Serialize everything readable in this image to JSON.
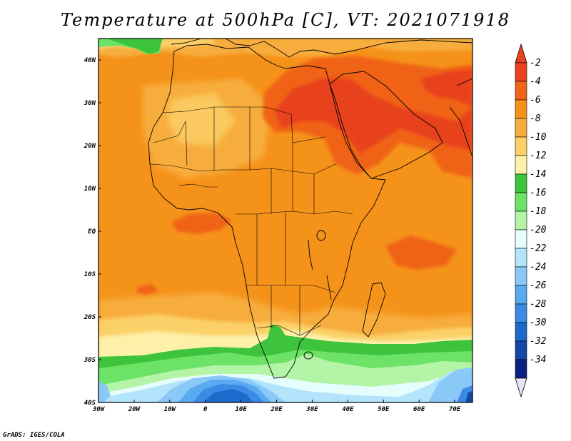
{
  "title": "Temperature at 500hPa [C], VT: 2021071918",
  "credit": "GrADS: IGES/COLA",
  "chart_data": {
    "type": "heatmap",
    "variable": "Temperature at 500hPa",
    "units": "C",
    "valid_time": "2021071918",
    "lon_range": [
      -30,
      75
    ],
    "lat_range": [
      -40,
      45
    ],
    "x_ticks": [
      "30W",
      "20W",
      "10W",
      "0",
      "10E",
      "20E",
      "30E",
      "40E",
      "50E",
      "60E",
      "70E"
    ],
    "y_ticks": [
      "40N",
      "30N",
      "20N",
      "10N",
      "EQ",
      "10S",
      "20S",
      "30S",
      "40S"
    ],
    "colorbar": {
      "levels": [
        -2,
        -4,
        -6,
        -8,
        -10,
        -12,
        -14,
        -16,
        -18,
        -20,
        -22,
        -24,
        -26,
        -28,
        -30,
        -32,
        -34
      ],
      "labels": [
        "-2",
        "-4",
        "-6",
        "-8",
        "-10",
        "-12",
        "-14",
        "-16",
        "-18",
        "-20",
        "-22",
        "-24",
        "-26",
        "-28",
        "-30",
        "-32",
        "-34"
      ],
      "colors": [
        "#e8421e",
        "#f06418",
        "#f5921a",
        "#f7ad3c",
        "#fbd067",
        "#fdf0a8",
        "#3ec43c",
        "#6ce266",
        "#b4f4a6",
        "#e6fdfd",
        "#b4e4fc",
        "#8ac8f8",
        "#5aaaf2",
        "#3c8ae6",
        "#1e6acc",
        "#1448a6",
        "#0c2080"
      ],
      "top_triangle_color": "#e8421e",
      "bottom_triangle_color": "#e8e4f8"
    }
  },
  "colors": {
    "warm_ocean": "#f5921a",
    "land_fill": "#f6a336",
    "hot_core": "#f06418",
    "hottest": "#e8421e"
  }
}
